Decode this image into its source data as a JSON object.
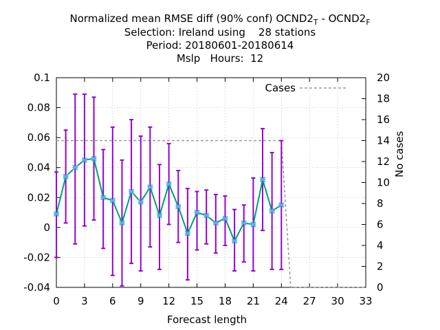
{
  "title": {
    "line1_prefix": "Normalized mean RMSE diff (90% conf) OCND2",
    "line1_sub1": "T",
    "line1_mid": " - OCND2",
    "line1_sub2": "F",
    "line2": "Selection: Ireland using    28 stations",
    "line3": "Period: 20180601-20180614",
    "line4": "Mslp   Hours:  12"
  },
  "chart_data": {
    "type": "line",
    "xlabel": "Forecast length",
    "ylabel": "",
    "y2label": "No cases",
    "xlim": [
      0,
      33
    ],
    "ylim": [
      -0.04,
      0.1
    ],
    "y2lim": [
      0,
      20
    ],
    "xticks": [
      "0",
      "3",
      "6",
      "9",
      "12",
      "15",
      "18",
      "21",
      "24",
      "27",
      "30",
      "33"
    ],
    "yticks": [
      "-0.04",
      "-0.02",
      "0",
      "0.02",
      "0.04",
      "0.06",
      "0.08",
      "0.1"
    ],
    "y2ticks": [
      "0",
      "2",
      "4",
      "6",
      "8",
      "10",
      "12",
      "14",
      "16",
      "18",
      "20"
    ],
    "grid": true,
    "legend_position": "top-right",
    "colors": {
      "errorbar": "#9400d3",
      "mean_line": "#009e73",
      "marker": "#56b4e9",
      "cases": "#999999"
    },
    "series": [
      {
        "kind": "mean-with-errorbars",
        "x": [
          0,
          1,
          2,
          3,
          4,
          5,
          6,
          7,
          8,
          9,
          10,
          11,
          12,
          13,
          14,
          15,
          16,
          17,
          18,
          19,
          20,
          21,
          22,
          23,
          24
        ],
        "y": [
          0.009,
          0.034,
          0.04,
          0.045,
          0.046,
          0.02,
          0.018,
          0.003,
          0.024,
          0.017,
          0.027,
          0.008,
          0.029,
          0.014,
          -0.004,
          0.01,
          0.008,
          0.003,
          0.006,
          -0.009,
          0.003,
          0.002,
          0.032,
          0.011,
          0.015
        ],
        "low": [
          -0.02,
          0.003,
          -0.011,
          0.001,
          0.005,
          -0.014,
          -0.032,
          -0.039,
          -0.024,
          -0.029,
          -0.013,
          -0.028,
          0.002,
          -0.01,
          -0.035,
          -0.015,
          -0.011,
          -0.017,
          -0.012,
          -0.029,
          -0.023,
          -0.029,
          -0.002,
          -0.028,
          -0.028
        ],
        "high": [
          0.037,
          0.065,
          0.089,
          0.089,
          0.087,
          0.052,
          0.067,
          0.045,
          0.072,
          0.061,
          0.067,
          0.042,
          0.056,
          0.038,
          0.026,
          0.024,
          0.025,
          0.022,
          0.021,
          0.012,
          0.015,
          0.033,
          0.066,
          0.05,
          0.058
        ]
      },
      {
        "name": "Cases",
        "axis": "y2",
        "style": "dashed",
        "x": [
          0,
          24,
          25,
          33
        ],
        "y": [
          14,
          14,
          0,
          0
        ]
      }
    ]
  }
}
